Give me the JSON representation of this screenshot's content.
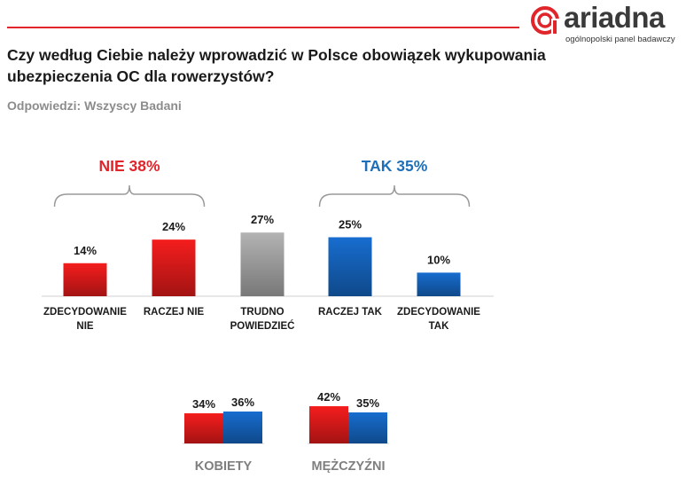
{
  "brand": {
    "name": "ariadna",
    "tagline": "ogólnopolski panel badawczy",
    "accent_color": "#e0252b"
  },
  "header": {
    "title": "Czy według Ciebie należy wprowadzić w Polsce obowiązek wykupowania ubezpieczenia OC dla rowerzystów?",
    "subtitle": "Odpowiedzi: Wszyscy Badani"
  },
  "chart_data": [
    {
      "type": "bar",
      "title": "Czy według Ciebie należy wprowadzić w Polsce obowiązek wykupowania ubezpieczenia OC dla rowerzystów?",
      "unit": "%",
      "categories": [
        [
          "ZDECYDOWANIE",
          "NIE"
        ],
        [
          "RACZEJ NIE"
        ],
        [
          "TRUDNO",
          "POWIEDZIEĆ"
        ],
        [
          "RACZEJ TAK"
        ],
        [
          "ZDECYDOWANIE",
          "TAK"
        ]
      ],
      "values": [
        14,
        24,
        27,
        25,
        10
      ],
      "labels": [
        "14%",
        "24%",
        "27%",
        "25%",
        "10%"
      ],
      "colors": [
        "#e31b1b",
        "#e31b1b",
        "#a6a6a6",
        "#1565c0",
        "#1565c0"
      ],
      "groups": [
        {
          "label": "NIE 38%",
          "from": 0,
          "to": 1,
          "color": "#e0252b"
        },
        {
          "label": "TAK 35%",
          "from": 3,
          "to": 4,
          "color": "#1f6fb8"
        }
      ],
      "ylim": [
        0,
        30
      ]
    },
    {
      "type": "bar",
      "categories": [
        "KOBIETY",
        "MĘŻCZYŹNI"
      ],
      "series": [
        {
          "name": "NIE",
          "values": [
            34,
            42
          ],
          "labels": [
            "34%",
            "42%"
          ],
          "color": "#e31b1b"
        },
        {
          "name": "TAK",
          "values": [
            36,
            35
          ],
          "labels": [
            "36%",
            "35%"
          ],
          "color": "#1565c0"
        }
      ],
      "ylim": [
        0,
        60
      ]
    }
  ]
}
